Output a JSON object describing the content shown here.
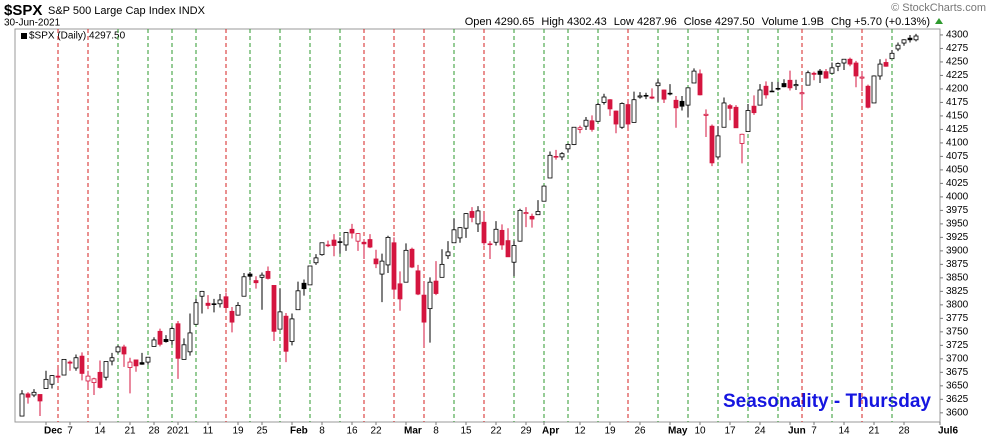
{
  "chart_data": {
    "type": "candlestick",
    "symbol": "$SPX",
    "name": "S&P 500 Large Cap Index INDX",
    "date": "30-Jun-2021",
    "copyright": "© StockCharts.com",
    "stats": [
      {
        "label": "Open",
        "value": "4290.65"
      },
      {
        "label": "High",
        "value": "4302.43"
      },
      {
        "label": "Low",
        "value": "4287.96"
      },
      {
        "label": "Close",
        "value": "4297.50"
      },
      {
        "label": "Volume",
        "value": "1.9B"
      },
      {
        "label": "Chg",
        "value": "+5.70 (+0.13%)"
      }
    ],
    "legend": "$SPX (Daily) 4297.50",
    "annotation": "Seasonality - Thursday",
    "up_color": "#000000",
    "down_color": "#d4153f",
    "thursday_up_color": "#2e9a2e",
    "thursday_down_color": "#d42020",
    "ylim": [
      3583,
      4311
    ],
    "yticks": [
      3600,
      3625,
      3650,
      3675,
      3700,
      3725,
      3750,
      3775,
      3800,
      3825,
      3850,
      3875,
      3900,
      3925,
      3950,
      3975,
      4000,
      4025,
      4050,
      4075,
      4100,
      4125,
      4150,
      4175,
      4200,
      4225,
      4250,
      4275,
      4300
    ],
    "xticks": [
      {
        "value": "2020-12-01",
        "label": "Dec"
      },
      {
        "value": "2020-12-07",
        "label": "7"
      },
      {
        "value": "2020-12-14",
        "label": "14"
      },
      {
        "value": "2020-12-21",
        "label": "21"
      },
      {
        "value": "2020-12-28",
        "label": "28"
      },
      {
        "value": "2021-01-04",
        "label": "2021"
      },
      {
        "value": "2021-01-11",
        "label": "11"
      },
      {
        "value": "2021-01-19",
        "label": "19"
      },
      {
        "value": "2021-01-25",
        "label": "25"
      },
      {
        "value": "2021-02-01",
        "label": "Feb"
      },
      {
        "value": "2021-02-08",
        "label": "8"
      },
      {
        "value": "2021-02-16",
        "label": "16"
      },
      {
        "value": "2021-02-22",
        "label": "22"
      },
      {
        "value": "2021-03-01",
        "label": "Mar"
      },
      {
        "value": "2021-03-08",
        "label": "8"
      },
      {
        "value": "2021-03-15",
        "label": "15"
      },
      {
        "value": "2021-03-22",
        "label": "22"
      },
      {
        "value": "2021-03-29",
        "label": "29"
      },
      {
        "value": "2021-04-01",
        "label": "Apr"
      },
      {
        "value": "2021-04-12",
        "label": "12"
      },
      {
        "value": "2021-04-19",
        "label": "19"
      },
      {
        "value": "2021-04-26",
        "label": "26"
      },
      {
        "value": "2021-05-03",
        "label": "May"
      },
      {
        "value": "2021-05-10",
        "label": "10"
      },
      {
        "value": "2021-05-17",
        "label": "17"
      },
      {
        "value": "2021-05-24",
        "label": "24"
      },
      {
        "value": "2021-06-01",
        "label": "Jun"
      },
      {
        "value": "2021-06-07",
        "label": "7"
      },
      {
        "value": "2021-06-14",
        "label": "14"
      },
      {
        "value": "2021-06-21",
        "label": "21"
      },
      {
        "value": "2021-06-28",
        "label": "28"
      },
      {
        "value": "2021-07-06",
        "label": "Jul6"
      }
    ],
    "x": [
      "2020-11-24",
      "2020-11-25",
      "2020-11-27",
      "2020-11-30",
      "2020-12-01",
      "2020-12-02",
      "2020-12-03",
      "2020-12-04",
      "2020-12-07",
      "2020-12-08",
      "2020-12-09",
      "2020-12-10",
      "2020-12-11",
      "2020-12-14",
      "2020-12-15",
      "2020-12-16",
      "2020-12-17",
      "2020-12-18",
      "2020-12-21",
      "2020-12-22",
      "2020-12-23",
      "2020-12-24",
      "2020-12-28",
      "2020-12-29",
      "2020-12-30",
      "2020-12-31",
      "2021-01-04",
      "2021-01-05",
      "2021-01-06",
      "2021-01-07",
      "2021-01-08",
      "2021-01-11",
      "2021-01-12",
      "2021-01-13",
      "2021-01-14",
      "2021-01-15",
      "2021-01-19",
      "2021-01-20",
      "2021-01-21",
      "2021-01-22",
      "2021-01-25",
      "2021-01-26",
      "2021-01-27",
      "2021-01-28",
      "2021-01-29",
      "2021-02-01",
      "2021-02-02",
      "2021-02-03",
      "2021-02-04",
      "2021-02-05",
      "2021-02-08",
      "2021-02-09",
      "2021-02-10",
      "2021-02-11",
      "2021-02-12",
      "2021-02-16",
      "2021-02-17",
      "2021-02-18",
      "2021-02-19",
      "2021-02-22",
      "2021-02-23",
      "2021-02-24",
      "2021-02-25",
      "2021-02-26",
      "2021-03-01",
      "2021-03-02",
      "2021-03-03",
      "2021-03-04",
      "2021-03-05",
      "2021-03-08",
      "2021-03-09",
      "2021-03-10",
      "2021-03-11",
      "2021-03-12",
      "2021-03-15",
      "2021-03-16",
      "2021-03-17",
      "2021-03-18",
      "2021-03-19",
      "2021-03-22",
      "2021-03-23",
      "2021-03-24",
      "2021-03-25",
      "2021-03-26",
      "2021-03-29",
      "2021-03-30",
      "2021-03-31",
      "2021-04-01",
      "2021-04-05",
      "2021-04-06",
      "2021-04-07",
      "2021-04-08",
      "2021-04-09",
      "2021-04-12",
      "2021-04-13",
      "2021-04-14",
      "2021-04-15",
      "2021-04-16",
      "2021-04-19",
      "2021-04-20",
      "2021-04-21",
      "2021-04-22",
      "2021-04-23",
      "2021-04-26",
      "2021-04-27",
      "2021-04-28",
      "2021-04-29",
      "2021-04-30",
      "2021-05-03",
      "2021-05-04",
      "2021-05-05",
      "2021-05-06",
      "2021-05-07",
      "2021-05-10",
      "2021-05-11",
      "2021-05-12",
      "2021-05-13",
      "2021-05-14",
      "2021-05-17",
      "2021-05-18",
      "2021-05-19",
      "2021-05-20",
      "2021-05-21",
      "2021-05-24",
      "2021-05-25",
      "2021-05-26",
      "2021-05-27",
      "2021-05-28",
      "2021-06-01",
      "2021-06-02",
      "2021-06-03",
      "2021-06-04",
      "2021-06-07",
      "2021-06-08",
      "2021-06-09",
      "2021-06-10",
      "2021-06-11",
      "2021-06-14",
      "2021-06-15",
      "2021-06-16",
      "2021-06-17",
      "2021-06-18",
      "2021-06-21",
      "2021-06-22",
      "2021-06-23",
      "2021-06-24",
      "2021-06-25",
      "2021-06-28",
      "2021-06-29",
      "2021-06-30"
    ],
    "ohlc": [
      [
        3594,
        3642,
        3594,
        3635
      ],
      [
        3635,
        3638,
        3617,
        3629
      ],
      [
        3633,
        3644,
        3629,
        3638
      ],
      [
        3634,
        3634,
        3594,
        3622
      ],
      [
        3645,
        3678,
        3645,
        3662
      ],
      [
        3653,
        3670,
        3645,
        3669
      ],
      [
        3668,
        3682,
        3657,
        3666
      ],
      [
        3670,
        3699,
        3670,
        3699
      ],
      [
        3694,
        3697,
        3678,
        3692
      ],
      [
        3683,
        3708,
        3678,
        3702
      ],
      [
        3705,
        3712,
        3660,
        3673
      ],
      [
        3659,
        3678,
        3645,
        3668
      ],
      [
        3656,
        3665,
        3633,
        3663
      ],
      [
        3675,
        3697,
        3645,
        3647
      ],
      [
        3666,
        3695,
        3660,
        3695
      ],
      [
        3696,
        3711,
        3688,
        3702
      ],
      [
        3713,
        3725,
        3710,
        3722
      ],
      [
        3722,
        3726,
        3685,
        3709
      ],
      [
        3684,
        3702,
        3636,
        3694
      ],
      [
        3698,
        3698,
        3676,
        3687
      ],
      [
        3693,
        3711,
        3689,
        3690
      ],
      [
        3694,
        3703,
        3689,
        3703
      ],
      [
        3723,
        3740,
        3723,
        3735
      ],
      [
        3751,
        3756,
        3723,
        3727
      ],
      [
        3736,
        3744,
        3730,
        3732
      ],
      [
        3734,
        3760,
        3726,
        3756
      ],
      [
        3765,
        3770,
        3663,
        3701
      ],
      [
        3699,
        3738,
        3699,
        3726
      ],
      [
        3713,
        3784,
        3706,
        3748
      ],
      [
        3764,
        3811,
        3764,
        3804
      ],
      [
        3816,
        3826,
        3784,
        3825
      ],
      [
        3803,
        3818,
        3792,
        3799
      ],
      [
        3802,
        3811,
        3786,
        3801
      ],
      [
        3802,
        3820,
        3795,
        3809
      ],
      [
        3815,
        3823,
        3792,
        3795
      ],
      [
        3788,
        3796,
        3749,
        3768
      ],
      [
        3781,
        3805,
        3780,
        3799
      ],
      [
        3816,
        3859,
        3816,
        3852
      ],
      [
        3857,
        3861,
        3845,
        3853
      ],
      [
        3845,
        3853,
        3830,
        3841
      ],
      [
        3851,
        3860,
        3791,
        3855
      ],
      [
        3862,
        3871,
        3847,
        3849
      ],
      [
        3836,
        3836,
        3733,
        3751
      ],
      [
        3755,
        3830,
        3755,
        3787
      ],
      [
        3779,
        3785,
        3694,
        3714
      ],
      [
        3732,
        3784,
        3725,
        3774
      ],
      [
        3791,
        3843,
        3791,
        3826
      ],
      [
        3840,
        3847,
        3817,
        3830
      ],
      [
        3837,
        3872,
        3837,
        3872
      ],
      [
        3878,
        3894,
        3874,
        3887
      ],
      [
        3893,
        3915,
        3891,
        3915
      ],
      [
        3911,
        3919,
        3907,
        3911
      ],
      [
        3920,
        3931,
        3890,
        3910
      ],
      [
        3917,
        3925,
        3895,
        3916
      ],
      [
        3911,
        3935,
        3900,
        3934
      ],
      [
        3940,
        3950,
        3923,
        3933
      ],
      [
        3918,
        3933,
        3900,
        3932
      ],
      [
        3916,
        3922,
        3885,
        3913
      ],
      [
        3921,
        3931,
        3905,
        3907
      ],
      [
        3885,
        3902,
        3868,
        3876
      ],
      [
        3857,
        3895,
        3805,
        3881
      ],
      [
        3874,
        3928,
        3859,
        3925
      ],
      [
        3915,
        3925,
        3815,
        3829
      ],
      [
        3839,
        3862,
        3789,
        3811
      ],
      [
        3842,
        3914,
        3842,
        3901
      ],
      [
        3903,
        3906,
        3868,
        3870
      ],
      [
        3863,
        3874,
        3818,
        3820
      ],
      [
        3818,
        3843,
        3723,
        3768
      ],
      [
        3793,
        3851,
        3730,
        3842
      ],
      [
        3844,
        3881,
        3818,
        3821
      ],
      [
        3851,
        3903,
        3851,
        3875
      ],
      [
        3891,
        3918,
        3885,
        3898
      ],
      [
        3915,
        3960,
        3915,
        3939
      ],
      [
        3924,
        3944,
        3915,
        3943
      ],
      [
        3942,
        3970,
        3924,
        3969
      ],
      [
        3973,
        3981,
        3953,
        3962
      ],
      [
        3950,
        3983,
        3935,
        3974
      ],
      [
        3953,
        3969,
        3910,
        3915
      ],
      [
        3913,
        3918,
        3885,
        3913
      ],
      [
        3916,
        3955,
        3910,
        3940
      ],
      [
        3938,
        3949,
        3902,
        3911
      ],
      [
        3919,
        3942,
        3889,
        3889
      ],
      [
        3879,
        3919,
        3853,
        3910
      ],
      [
        3918,
        3978,
        3917,
        3975
      ],
      [
        3969,
        3981,
        3944,
        3971
      ],
      [
        3964,
        3969,
        3943,
        3959
      ],
      [
        3967,
        3994,
        3967,
        3973
      ],
      [
        3992,
        4021,
        3992,
        4020
      ],
      [
        4035,
        4084,
        4035,
        4077
      ],
      [
        4075,
        4087,
        4069,
        4074
      ],
      [
        4074,
        4083,
        4068,
        4080
      ],
      [
        4089,
        4099,
        4082,
        4097
      ],
      [
        4097,
        4129,
        4096,
        4129
      ],
      [
        4125,
        4132,
        4118,
        4128
      ],
      [
        4131,
        4148,
        4124,
        4142
      ],
      [
        4141,
        4151,
        4121,
        4125
      ],
      [
        4140,
        4174,
        4140,
        4171
      ],
      [
        4175,
        4191,
        4171,
        4185
      ],
      [
        4180,
        4181,
        4150,
        4163
      ],
      [
        4159,
        4160,
        4118,
        4135
      ],
      [
        4129,
        4175,
        4126,
        4173
      ],
      [
        4171,
        4179,
        4128,
        4135
      ],
      [
        4138,
        4195,
        4138,
        4180
      ],
      [
        4185,
        4194,
        4182,
        4187
      ],
      [
        4188,
        4193,
        4181,
        4187
      ],
      [
        4185,
        4201,
        4181,
        4183
      ],
      [
        4206,
        4218,
        4176,
        4211
      ],
      [
        4198,
        4199,
        4174,
        4181
      ],
      [
        4192,
        4209,
        4188,
        4192
      ],
      [
        4179,
        4187,
        4128,
        4165
      ],
      [
        4177,
        4187,
        4160,
        4168
      ],
      [
        4170,
        4202,
        4147,
        4202
      ],
      [
        4211,
        4238,
        4211,
        4233
      ],
      [
        4228,
        4236,
        4188,
        4189
      ],
      [
        4151,
        4162,
        4111,
        4153
      ],
      [
        4131,
        4134,
        4057,
        4063
      ],
      [
        4074,
        4131,
        4069,
        4113
      ],
      [
        4129,
        4184,
        4129,
        4174
      ],
      [
        4169,
        4172,
        4142,
        4164
      ],
      [
        4166,
        4170,
        4128,
        4128
      ],
      [
        4099,
        4117,
        4062,
        4116
      ],
      [
        4121,
        4172,
        4121,
        4160
      ],
      [
        4168,
        4188,
        4152,
        4156
      ],
      [
        4170,
        4209,
        4170,
        4198
      ],
      [
        4205,
        4214,
        4182,
        4189
      ],
      [
        4195,
        4213,
        4195,
        4196
      ],
      [
        4200,
        4213,
        4197,
        4201
      ],
      [
        4210,
        4218,
        4203,
        4204
      ],
      [
        4216,
        4234,
        4197,
        4202
      ],
      [
        4206,
        4217,
        4198,
        4208
      ],
      [
        4191,
        4200,
        4168,
        4193
      ],
      [
        4207,
        4234,
        4207,
        4230
      ],
      [
        4229,
        4232,
        4216,
        4227
      ],
      [
        4233,
        4237,
        4211,
        4227
      ],
      [
        4232,
        4237,
        4219,
        4220
      ],
      [
        4229,
        4249,
        4229,
        4239
      ],
      [
        4242,
        4249,
        4233,
        4247
      ],
      [
        4248,
        4255,
        4235,
        4255
      ],
      [
        4255,
        4258,
        4242,
        4246
      ],
      [
        4248,
        4252,
        4203,
        4224
      ],
      [
        4220,
        4233,
        4196,
        4222
      ],
      [
        4205,
        4208,
        4164,
        4166
      ],
      [
        4174,
        4225,
        4174,
        4224
      ],
      [
        4224,
        4255,
        4217,
        4246
      ],
      [
        4249,
        4256,
        4241,
        4242
      ],
      [
        4256,
        4272,
        4256,
        4266
      ],
      [
        4274,
        4286,
        4270,
        4281
      ],
      [
        4285,
        4292,
        4280,
        4291
      ],
      [
        4294,
        4300,
        4286,
        4291
      ],
      [
        4291,
        4302,
        4288,
        4298
      ]
    ]
  }
}
